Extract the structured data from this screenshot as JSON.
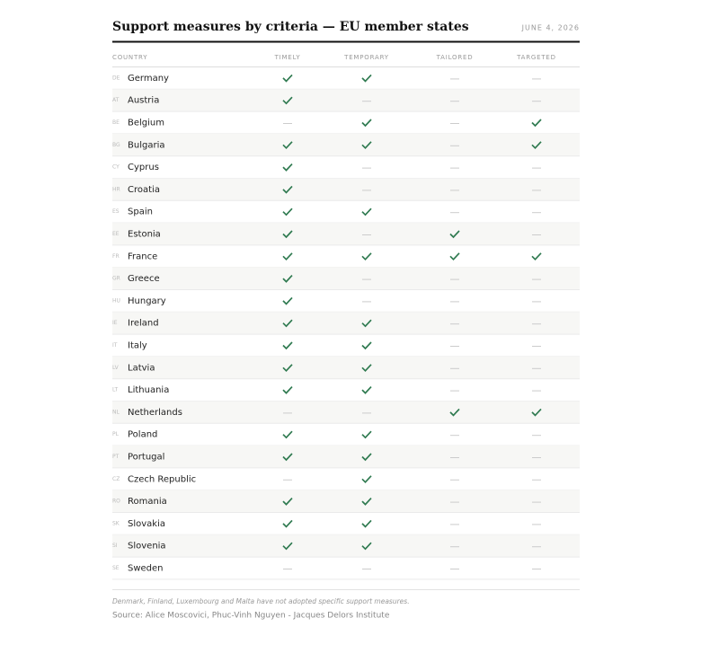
{
  "header": {
    "title": "Support measures by criteria — EU member states",
    "date": "JUNE 4, 2026"
  },
  "table": {
    "columns": [
      "COUNTRY",
      "TIMELY",
      "TEMPORARY",
      "TAILORED",
      "TARGETED"
    ],
    "rows": [
      {
        "code": "DE",
        "country": "Germany",
        "cells": [
          true,
          true,
          false,
          false
        ]
      },
      {
        "code": "AT",
        "country": "Austria",
        "cells": [
          true,
          false,
          false,
          false
        ]
      },
      {
        "code": "BE",
        "country": "Belgium",
        "cells": [
          false,
          true,
          false,
          true
        ]
      },
      {
        "code": "BG",
        "country": "Bulgaria",
        "cells": [
          true,
          true,
          false,
          true
        ]
      },
      {
        "code": "CY",
        "country": "Cyprus",
        "cells": [
          true,
          false,
          false,
          false
        ]
      },
      {
        "code": "HR",
        "country": "Croatia",
        "cells": [
          true,
          false,
          false,
          false
        ]
      },
      {
        "code": "ES",
        "country": "Spain",
        "cells": [
          true,
          true,
          false,
          false
        ]
      },
      {
        "code": "EE",
        "country": "Estonia",
        "cells": [
          true,
          false,
          true,
          false
        ]
      },
      {
        "code": "FR",
        "country": "France",
        "cells": [
          true,
          true,
          true,
          true
        ]
      },
      {
        "code": "GR",
        "country": "Greece",
        "cells": [
          true,
          false,
          false,
          false
        ]
      },
      {
        "code": "HU",
        "country": "Hungary",
        "cells": [
          true,
          false,
          false,
          false
        ]
      },
      {
        "code": "IE",
        "country": "Ireland",
        "cells": [
          true,
          true,
          false,
          false
        ]
      },
      {
        "code": "IT",
        "country": "Italy",
        "cells": [
          true,
          true,
          false,
          false
        ]
      },
      {
        "code": "LV",
        "country": "Latvia",
        "cells": [
          true,
          true,
          false,
          false
        ]
      },
      {
        "code": "LT",
        "country": "Lithuania",
        "cells": [
          true,
          true,
          false,
          false
        ]
      },
      {
        "code": "NL",
        "country": "Netherlands",
        "cells": [
          false,
          false,
          true,
          true
        ]
      },
      {
        "code": "PL",
        "country": "Poland",
        "cells": [
          true,
          true,
          false,
          false
        ]
      },
      {
        "code": "PT",
        "country": "Portugal",
        "cells": [
          true,
          true,
          false,
          false
        ]
      },
      {
        "code": "CZ",
        "country": "Czech Republic",
        "cells": [
          false,
          true,
          false,
          false
        ]
      },
      {
        "code": "RO",
        "country": "Romania",
        "cells": [
          true,
          true,
          false,
          false
        ]
      },
      {
        "code": "SK",
        "country": "Slovakia",
        "cells": [
          true,
          true,
          false,
          false
        ]
      },
      {
        "code": "SI",
        "country": "Slovenia",
        "cells": [
          true,
          true,
          false,
          false
        ]
      },
      {
        "code": "SE",
        "country": "Sweden",
        "cells": [
          false,
          false,
          false,
          false
        ]
      }
    ]
  },
  "footer": {
    "note": "Denmark, Finland, Luxembourg and Malta have not adopted specific support measures.",
    "source": "Source: Alice Moscovici, Phuc-Vinh Nguyen - Jacques Delors Institute"
  }
}
